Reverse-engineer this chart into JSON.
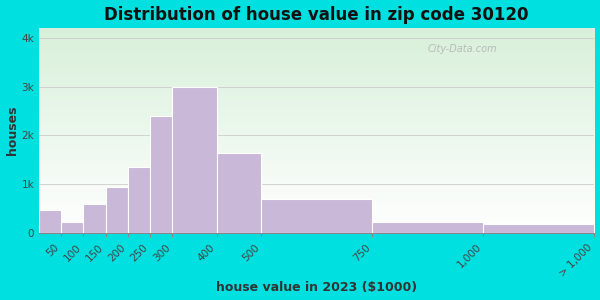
{
  "title": "Distribution of house value in zip code 30120",
  "xlabel": "house value in 2023 ($1000)",
  "ylabel": "houses",
  "bin_edges": [
    0,
    50,
    100,
    150,
    200,
    250,
    300,
    400,
    500,
    750,
    1000,
    1250
  ],
  "bin_heights": [
    480,
    220,
    600,
    950,
    1350,
    2400,
    3000,
    1650,
    700,
    220,
    185
  ],
  "xtick_positions": [
    50,
    100,
    150,
    200,
    250,
    300,
    400,
    500,
    750,
    1000,
    1250
  ],
  "xtick_labels": [
    "50",
    "100",
    "150",
    "200",
    "250",
    "300",
    "400",
    "500",
    "750",
    "1,000",
    "> 1,000"
  ],
  "bar_color": "#c9b8d8",
  "bar_edge_color": "#ffffff",
  "yticks": [
    0,
    1000,
    2000,
    3000,
    4000
  ],
  "ytick_labels": [
    "0",
    "1k",
    "2k",
    "3k",
    "4k"
  ],
  "ylim": [
    0,
    4200
  ],
  "bg_outer": "#00e0e0",
  "title_fontsize": 12,
  "axis_label_fontsize": 9,
  "tick_fontsize": 7.5,
  "watermark": "City-Data.com"
}
